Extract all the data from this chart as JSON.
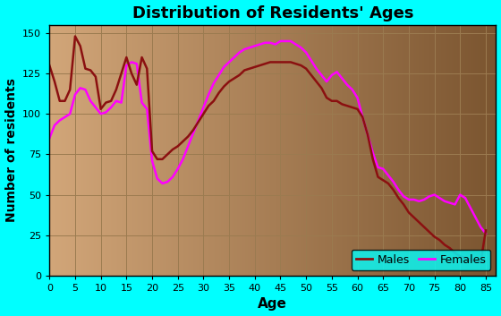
{
  "title": "Distribution of Residents' Ages",
  "xlabel": "Age",
  "ylabel": "Number of residents",
  "xlim": [
    0,
    87
  ],
  "ylim": [
    0,
    155
  ],
  "xticks": [
    0,
    5,
    10,
    15,
    20,
    25,
    30,
    35,
    40,
    45,
    50,
    55,
    60,
    65,
    70,
    75,
    80,
    85
  ],
  "yticks": [
    0,
    25,
    50,
    75,
    100,
    125,
    150
  ],
  "background_outer": "#00FFFF",
  "background_plot_left": "#D2A679",
  "background_plot_right": "#7B5530",
  "grid_color": "#9B7B50",
  "male_color": "#8B1010",
  "female_color": "#FF00FF",
  "legend_bg": "#00FFFF",
  "males_ages": [
    0,
    1,
    2,
    3,
    4,
    5,
    6,
    7,
    8,
    9,
    10,
    11,
    12,
    13,
    14,
    15,
    16,
    17,
    18,
    19,
    20,
    21,
    22,
    23,
    24,
    25,
    26,
    27,
    28,
    29,
    30,
    31,
    32,
    33,
    34,
    35,
    36,
    37,
    38,
    39,
    40,
    41,
    42,
    43,
    44,
    45,
    46,
    47,
    48,
    49,
    50,
    51,
    52,
    53,
    54,
    55,
    56,
    57,
    58,
    59,
    60,
    61,
    62,
    63,
    64,
    65,
    66,
    67,
    68,
    69,
    70,
    71,
    72,
    73,
    74,
    75,
    76,
    77,
    78,
    79,
    80,
    81,
    82,
    83,
    84,
    85
  ],
  "males_vals": [
    130,
    120,
    108,
    108,
    115,
    148,
    142,
    128,
    127,
    123,
    103,
    107,
    108,
    115,
    125,
    135,
    125,
    118,
    135,
    128,
    77,
    72,
    72,
    75,
    78,
    80,
    83,
    86,
    90,
    95,
    100,
    105,
    108,
    113,
    117,
    120,
    122,
    124,
    127,
    128,
    129,
    130,
    131,
    132,
    132,
    132,
    132,
    132,
    131,
    130,
    128,
    124,
    120,
    116,
    110,
    108,
    108,
    106,
    105,
    104,
    103,
    98,
    87,
    72,
    61,
    59,
    57,
    53,
    48,
    44,
    39,
    36,
    33,
    30,
    27,
    24,
    22,
    19,
    17,
    14,
    12,
    11,
    10,
    9,
    8,
    28
  ],
  "females_ages": [
    0,
    1,
    2,
    3,
    4,
    5,
    6,
    7,
    8,
    9,
    10,
    11,
    12,
    13,
    14,
    15,
    16,
    17,
    18,
    19,
    20,
    21,
    22,
    23,
    24,
    25,
    26,
    27,
    28,
    29,
    30,
    31,
    32,
    33,
    34,
    35,
    36,
    37,
    38,
    39,
    40,
    41,
    42,
    43,
    44,
    45,
    46,
    47,
    48,
    49,
    50,
    51,
    52,
    53,
    54,
    55,
    56,
    57,
    58,
    59,
    60,
    61,
    62,
    63,
    64,
    65,
    66,
    67,
    68,
    69,
    70,
    71,
    72,
    73,
    74,
    75,
    76,
    77,
    78,
    79,
    80,
    81,
    82,
    83,
    84,
    85
  ],
  "females_vals": [
    85,
    93,
    96,
    98,
    100,
    112,
    116,
    115,
    108,
    104,
    100,
    101,
    104,
    108,
    107,
    130,
    132,
    131,
    107,
    103,
    71,
    60,
    57,
    58,
    61,
    66,
    72,
    80,
    88,
    96,
    104,
    112,
    119,
    124,
    129,
    132,
    135,
    138,
    140,
    141,
    142,
    143,
    144,
    144,
    143,
    145,
    145,
    145,
    143,
    141,
    138,
    133,
    128,
    124,
    120,
    124,
    126,
    122,
    118,
    115,
    110,
    98,
    87,
    76,
    67,
    66,
    62,
    58,
    53,
    49,
    47,
    47,
    46,
    47,
    49,
    50,
    48,
    46,
    45,
    44,
    50,
    48,
    42,
    36,
    30,
    26
  ]
}
